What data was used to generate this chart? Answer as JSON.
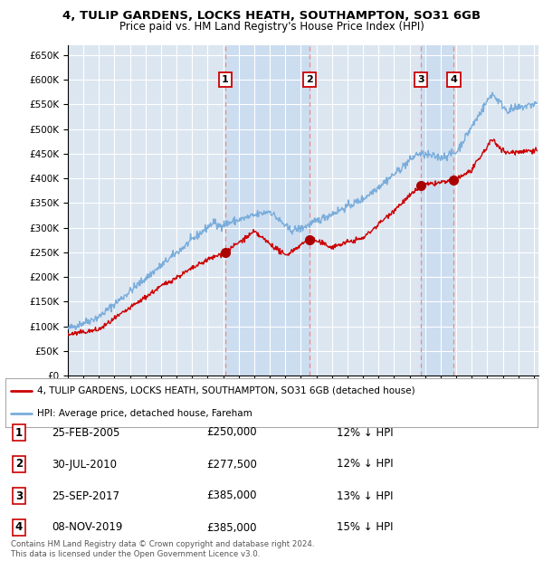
{
  "title": "4, TULIP GARDENS, LOCKS HEATH, SOUTHAMPTON, SO31 6GB",
  "subtitle": "Price paid vs. HM Land Registry's House Price Index (HPI)",
  "ylim": [
    0,
    670000
  ],
  "yticks": [
    0,
    50000,
    100000,
    150000,
    200000,
    250000,
    300000,
    350000,
    400000,
    450000,
    500000,
    550000,
    600000,
    650000
  ],
  "xlim_start": 1995.0,
  "xlim_end": 2025.3,
  "background_color": "#ffffff",
  "plot_bg_color": "#dce6f1",
  "grid_color": "#ffffff",
  "transactions": [
    {
      "num": 1,
      "date": 2005.12,
      "price": 250000,
      "label": "25-FEB-2005",
      "price_label": "£250,000",
      "hpi_label": "12% ↓ HPI"
    },
    {
      "num": 2,
      "date": 2010.58,
      "price": 277500,
      "label": "30-JUL-2010",
      "price_label": "£277,500",
      "hpi_label": "12% ↓ HPI"
    },
    {
      "num": 3,
      "date": 2017.73,
      "price": 385000,
      "label": "25-SEP-2017",
      "price_label": "£385,000",
      "hpi_label": "13% ↓ HPI"
    },
    {
      "num": 4,
      "date": 2019.85,
      "price": 385000,
      "label": "08-NOV-2019",
      "price_label": "£385,000",
      "hpi_label": "15% ↓ HPI"
    }
  ],
  "legend_line1": "4, TULIP GARDENS, LOCKS HEATH, SOUTHAMPTON, SO31 6GB (detached house)",
  "legend_line2": "HPI: Average price, detached house, Fareham",
  "footer1": "Contains HM Land Registry data © Crown copyright and database right 2024.",
  "footer2": "This data is licensed under the Open Government Licence v3.0.",
  "red_color": "#cc0000",
  "blue_color": "#7aaddb",
  "vline_color": "#ee8888",
  "shade_color": "#ccddf0",
  "dot_color": "#aa0000"
}
